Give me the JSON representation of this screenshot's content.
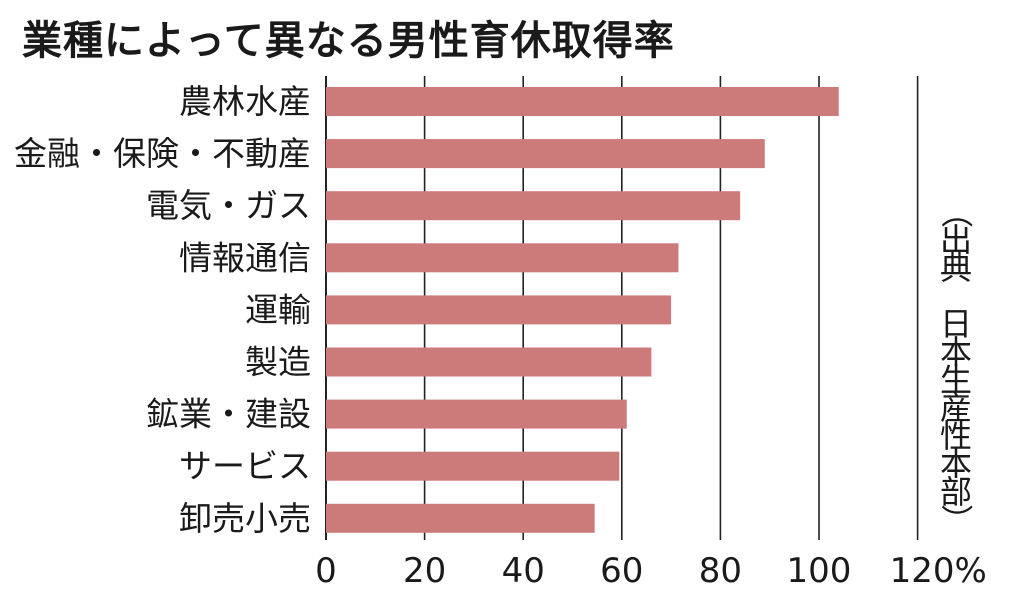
{
  "title": "業種によって異なる男性育休取得率",
  "source": "（出典 日本生産性本部）",
  "chart_data": {
    "type": "bar",
    "orientation": "horizontal",
    "title": "業種によって異なる男性育休取得率",
    "categories": [
      "農林水産",
      "金融・保険・不動産",
      "電気・ガス",
      "情報通信",
      "運輸",
      "製造",
      "鉱業・建設",
      "サービス",
      "卸売小売"
    ],
    "values": [
      104,
      89,
      84,
      71.5,
      70,
      66,
      61,
      59.5,
      54.5
    ],
    "xlim": [
      0,
      120
    ],
    "xticks": [
      "0",
      "20",
      "40",
      "60",
      "80",
      "100",
      "120"
    ],
    "x_unit": "%",
    "grid": "vertical",
    "bar_color": "#cd7b7a",
    "grid_color": "#222222",
    "legend": "none"
  }
}
